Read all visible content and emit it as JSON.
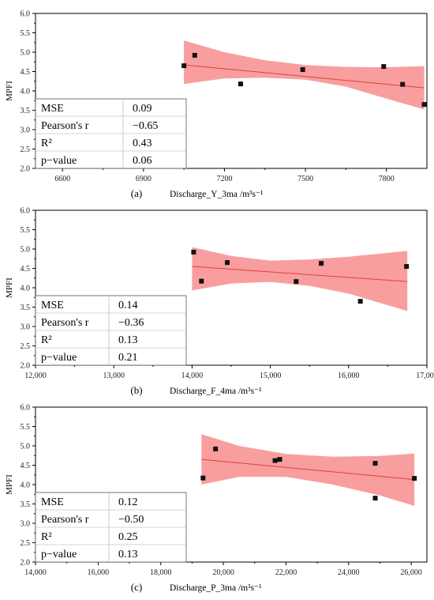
{
  "chart_data": [
    {
      "type": "scatter",
      "panel_label": "(a)",
      "xlabel": "Discharge_Y_3ma /m³s⁻¹",
      "ylabel": "MPFI",
      "xlim": [
        6500,
        7950
      ],
      "ylim": [
        2.0,
        6.0
      ],
      "xticks": [
        6600,
        6900,
        7200,
        7500,
        7800
      ],
      "xtick_labels": [
        "6600",
        "6900",
        "7200",
        "7500",
        "7800"
      ],
      "yticks": [
        2.0,
        2.5,
        3.0,
        3.5,
        4.0,
        4.5,
        5.0,
        5.5,
        6.0
      ],
      "ytick_labels": [
        "2.0",
        "2.5",
        "3.0",
        "3.5",
        "4.0",
        "4.5",
        "5.0",
        "5.5",
        "6.0"
      ],
      "points": [
        [
          7050,
          4.65
        ],
        [
          7090,
          4.92
        ],
        [
          7260,
          4.18
        ],
        [
          7490,
          4.55
        ],
        [
          7790,
          4.63
        ],
        [
          7860,
          4.17
        ],
        [
          7940,
          3.65
        ]
      ],
      "fit": {
        "x": [
          7050,
          7940
        ],
        "y": [
          4.67,
          4.08
        ]
      },
      "band_upper": [
        [
          7050,
          5.3
        ],
        [
          7200,
          5.0
        ],
        [
          7350,
          4.79
        ],
        [
          7500,
          4.67
        ],
        [
          7650,
          4.62
        ],
        [
          7800,
          4.61
        ],
        [
          7940,
          4.64
        ]
      ],
      "band_lower": [
        [
          7050,
          4.18
        ],
        [
          7200,
          4.32
        ],
        [
          7350,
          4.34
        ],
        [
          7500,
          4.29
        ],
        [
          7650,
          4.11
        ],
        [
          7800,
          3.8
        ],
        [
          7940,
          3.52
        ]
      ],
      "stats": [
        {
          "label": "MSE",
          "value": "0.09"
        },
        {
          "label": "Pearson's r",
          "value": "−0.65"
        },
        {
          "label": "R²",
          "value": "0.43"
        },
        {
          "label": "p−value",
          "value": "0.06"
        }
      ]
    },
    {
      "type": "scatter",
      "panel_label": "(b)",
      "xlabel": "Discharge_F_4ma /m³s⁻¹",
      "ylabel": "MPFI",
      "xlim": [
        12000,
        17000
      ],
      "ylim": [
        2.0,
        6.0
      ],
      "xticks": [
        12000,
        13000,
        14000,
        15000,
        16000,
        17000
      ],
      "xtick_labels": [
        "12,000",
        "13,000",
        "14,000",
        "15,000",
        "16,000",
        "17,000"
      ],
      "yticks": [
        2.0,
        2.5,
        3.0,
        3.5,
        4.0,
        4.5,
        5.0,
        5.5,
        6.0
      ],
      "ytick_labels": [
        "2.0",
        "2.5",
        "3.0",
        "3.5",
        "4.0",
        "4.5",
        "5.0",
        "5.5",
        "6.0"
      ],
      "points": [
        [
          14020,
          4.92
        ],
        [
          14120,
          4.17
        ],
        [
          14450,
          4.65
        ],
        [
          15330,
          4.16
        ],
        [
          15650,
          4.63
        ],
        [
          16150,
          3.65
        ],
        [
          16740,
          4.55
        ]
      ],
      "fit": {
        "x": [
          14000,
          16750
        ],
        "y": [
          4.55,
          4.16
        ]
      },
      "band_upper": [
        [
          14000,
          5.05
        ],
        [
          14500,
          4.82
        ],
        [
          15000,
          4.7
        ],
        [
          15500,
          4.73
        ],
        [
          16000,
          4.8
        ],
        [
          16750,
          4.95
        ]
      ],
      "band_lower": [
        [
          14000,
          3.93
        ],
        [
          14500,
          4.11
        ],
        [
          15000,
          4.15
        ],
        [
          15500,
          4.05
        ],
        [
          16000,
          3.85
        ],
        [
          16750,
          3.4
        ]
      ],
      "stats": [
        {
          "label": "MSE",
          "value": "0.14"
        },
        {
          "label": "Pearson's r",
          "value": "−0.36"
        },
        {
          "label": "R²",
          "value": "0.13"
        },
        {
          "label": "p−value",
          "value": "0.21"
        }
      ]
    },
    {
      "type": "scatter",
      "panel_label": "(c)",
      "xlabel": "Discharge_P_3ma /m³s⁻¹",
      "ylabel": "MPFI",
      "xlim": [
        14000,
        26500
      ],
      "ylim": [
        2.0,
        6.0
      ],
      "xticks": [
        14000,
        16000,
        18000,
        20000,
        22000,
        24000,
        26000
      ],
      "xtick_labels": [
        "14,000",
        "16,000",
        "18,000",
        "20,000",
        "22,000",
        "24,000",
        "26,000"
      ],
      "yticks": [
        2.0,
        2.5,
        3.0,
        3.5,
        4.0,
        4.5,
        5.0,
        5.5,
        6.0
      ],
      "ytick_labels": [
        "2.0",
        "2.5",
        "3.0",
        "3.5",
        "4.0",
        "4.5",
        "5.0",
        "5.5",
        "6.0"
      ],
      "points": [
        [
          19350,
          4.17
        ],
        [
          19750,
          4.92
        ],
        [
          21650,
          4.62
        ],
        [
          21800,
          4.65
        ],
        [
          24850,
          4.55
        ],
        [
          24850,
          3.65
        ],
        [
          26100,
          4.16
        ]
      ],
      "fit": {
        "x": [
          19300,
          26100
        ],
        "y": [
          4.65,
          4.13
        ]
      },
      "band_upper": [
        [
          19300,
          5.3
        ],
        [
          20500,
          5.0
        ],
        [
          22000,
          4.79
        ],
        [
          23500,
          4.72
        ],
        [
          25000,
          4.74
        ],
        [
          26100,
          4.8
        ]
      ],
      "band_lower": [
        [
          19300,
          4.0
        ],
        [
          20500,
          4.2
        ],
        [
          22000,
          4.2
        ],
        [
          23500,
          4.0
        ],
        [
          25000,
          3.72
        ],
        [
          26100,
          3.45
        ]
      ],
      "stats": [
        {
          "label": "MSE",
          "value": "0.12"
        },
        {
          "label": "Pearson's r",
          "value": "−0.50"
        },
        {
          "label": "R²",
          "value": "0.25"
        },
        {
          "label": "p−value",
          "value": "0.13"
        }
      ]
    }
  ],
  "style": {
    "band_color": "#f99e9e",
    "fit_color": "#e0403a",
    "point_color": "#111111"
  }
}
